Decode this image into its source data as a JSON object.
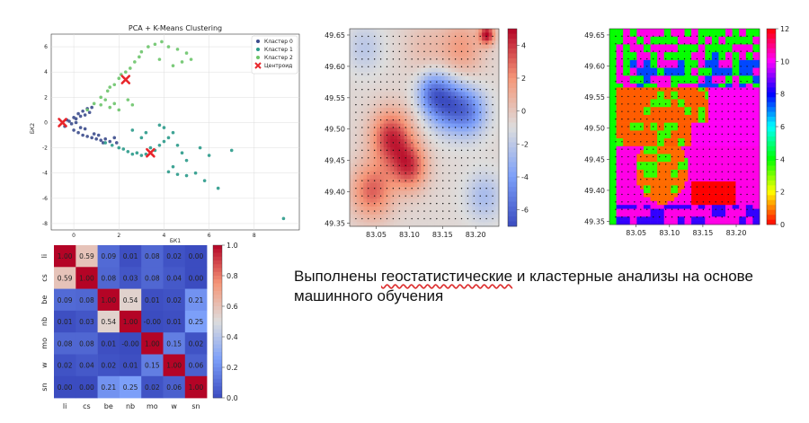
{
  "caption": {
    "part1": "Выполнены ",
    "underlined": "геостатистические",
    "part2": " и кластерные анализы на основе машинного обучения"
  },
  "chart_data": [
    {
      "type": "scatter",
      "title": "PCA + K-Means Clustering",
      "xlabel": "БК1",
      "ylabel": "БК2",
      "xlim": [
        -1,
        10
      ],
      "ylim": [
        -8.5,
        7
      ],
      "xticks": [
        "0",
        "2",
        "4",
        "6",
        "8"
      ],
      "xtick_values": [
        0,
        2,
        4,
        6,
        8
      ],
      "yticks": [
        "6",
        "4",
        "2",
        "0",
        "-2",
        "-4",
        "-6",
        "-8"
      ],
      "ytick_values": [
        6,
        4,
        2,
        0,
        -2,
        -4,
        -6,
        -8
      ],
      "grid": true,
      "legend_position": "top-right",
      "series": [
        {
          "name": "Кластер 0",
          "color": "#3b4b8c",
          "points": [
            [
              -0.4,
              -0.3
            ],
            [
              -0.2,
              0.1
            ],
            [
              0,
              0.4
            ],
            [
              0.2,
              0.7
            ],
            [
              0.4,
              0.9
            ],
            [
              0.6,
              1.1
            ],
            [
              0.8,
              1.2
            ],
            [
              0.1,
              0.3
            ],
            [
              0.3,
              0.5
            ],
            [
              0.5,
              0.6
            ],
            [
              0.7,
              0.8
            ],
            [
              -0.1,
              -0.1
            ],
            [
              0.0,
              -0.6
            ],
            [
              0.2,
              -0.8
            ],
            [
              0.4,
              -1.0
            ],
            [
              0.6,
              -1.1
            ],
            [
              0.8,
              -1.2
            ],
            [
              1.0,
              -1.3
            ],
            [
              1.2,
              -1.4
            ],
            [
              1.4,
              -1.3
            ],
            [
              1.6,
              -1.5
            ],
            [
              1.8,
              -1.2
            ],
            [
              1.9,
              -1.6
            ],
            [
              0.9,
              -0.9
            ],
            [
              1.1,
              -1.0
            ],
            [
              0.3,
              -0.4
            ],
            [
              0.5,
              -0.5
            ],
            [
              0.1,
              0.0
            ],
            [
              -0.3,
              0.2
            ],
            [
              1.3,
              -1.6
            ]
          ]
        },
        {
          "name": "Кластер 1",
          "color": "#2a9a8a",
          "points": [
            [
              1.4,
              -1.6
            ],
            [
              1.7,
              -1.8
            ],
            [
              2.0,
              -2.0
            ],
            [
              2.2,
              -2.1
            ],
            [
              2.4,
              -2.3
            ],
            [
              2.6,
              -2.5
            ],
            [
              2.8,
              -2.4
            ],
            [
              3.0,
              -2.6
            ],
            [
              3.2,
              -2.5
            ],
            [
              3.4,
              -2.0
            ],
            [
              3.6,
              -2.2
            ],
            [
              3.8,
              -1.8
            ],
            [
              4.0,
              -1.5
            ],
            [
              4.2,
              -1.2
            ],
            [
              4.4,
              -0.8
            ],
            [
              4.0,
              -0.4
            ],
            [
              3.8,
              -0.2
            ],
            [
              4.6,
              -1.8
            ],
            [
              4.8,
              -2.4
            ],
            [
              5.0,
              -3.0
            ],
            [
              4.4,
              -3.5
            ],
            [
              4.2,
              -3.9
            ],
            [
              4.6,
              -4.1
            ],
            [
              5.0,
              -4.2
            ],
            [
              5.4,
              -4.0
            ],
            [
              5.8,
              -4.6
            ],
            [
              6.4,
              -5.2
            ],
            [
              7.0,
              -2.2
            ],
            [
              6.0,
              -2.6
            ],
            [
              5.6,
              -2.0
            ],
            [
              9.3,
              -7.6
            ],
            [
              3.2,
              -0.8
            ],
            [
              3.0,
              -1.2
            ],
            [
              2.6,
              -0.6
            ]
          ]
        },
        {
          "name": "Кластер 2",
          "color": "#6cc46a",
          "points": [
            [
              0.6,
              1.0
            ],
            [
              0.9,
              1.5
            ],
            [
              1.2,
              2.0
            ],
            [
              1.5,
              2.5
            ],
            [
              1.6,
              2.8
            ],
            [
              1.8,
              3.0
            ],
            [
              2.0,
              3.5
            ],
            [
              2.1,
              3.8
            ],
            [
              2.3,
              4.0
            ],
            [
              2.5,
              4.3
            ],
            [
              2.7,
              4.8
            ],
            [
              2.9,
              5.2
            ],
            [
              3.0,
              5.6
            ],
            [
              3.3,
              6.0
            ],
            [
              3.6,
              6.2
            ],
            [
              3.9,
              6.4
            ],
            [
              4.2,
              6.0
            ],
            [
              4.6,
              5.8
            ],
            [
              5.0,
              5.5
            ],
            [
              5.2,
              5.0
            ],
            [
              4.8,
              4.8
            ],
            [
              4.4,
              4.5
            ],
            [
              3.8,
              5.0
            ],
            [
              1.6,
              1.2
            ],
            [
              1.8,
              1.5
            ],
            [
              2.0,
              1.0
            ],
            [
              1.4,
              1.8
            ],
            [
              2.4,
              1.8
            ],
            [
              2.6,
              1.4
            ],
            [
              1.2,
              1.4
            ]
          ]
        }
      ],
      "centroids": {
        "name": "Центроид",
        "color": "#e8262b",
        "points": [
          [
            -0.5,
            0.0
          ],
          [
            2.3,
            3.4
          ],
          [
            3.4,
            -2.4
          ]
        ]
      }
    },
    {
      "type": "heatmap",
      "subtype": "interpolated-map-coolwarm",
      "xticks": [
        "83.05",
        "83.10",
        "83.15",
        "83.20"
      ],
      "xtick_values": [
        83.05,
        83.1,
        83.15,
        83.2
      ],
      "yticks": [
        "49.65",
        "49.60",
        "49.55",
        "49.50",
        "49.45",
        "49.40",
        "49.35"
      ],
      "ytick_values": [
        49.65,
        49.6,
        49.55,
        49.5,
        49.45,
        49.4,
        49.35
      ],
      "xlim": [
        83.01,
        83.235
      ],
      "ylim": [
        49.345,
        49.66
      ],
      "colorbar": {
        "ticks": [
          "4",
          "2",
          "0",
          "-2",
          "-4",
          "-6"
        ],
        "tick_values": [
          4,
          2,
          0,
          -2,
          -4,
          -6
        ],
        "range": [
          -7,
          5
        ],
        "colormap": "coolwarm"
      }
    },
    {
      "type": "heatmap",
      "subtype": "classified-map-hsv",
      "xticks": [
        "83.05",
        "83.10",
        "83.15",
        "83.20"
      ],
      "xtick_values": [
        83.05,
        83.1,
        83.15,
        83.2
      ],
      "yticks": [
        "49.65",
        "49.60",
        "49.55",
        "49.50",
        "49.45",
        "49.40",
        "49.35"
      ],
      "ytick_values": [
        49.65,
        49.6,
        49.55,
        49.5,
        49.45,
        49.4,
        49.35
      ],
      "xlim": [
        83.01,
        83.235
      ],
      "ylim": [
        49.345,
        49.66
      ],
      "colorbar": {
        "ticks": [
          "12",
          "10",
          "8",
          "6",
          "4",
          "2",
          "0"
        ],
        "tick_values": [
          12,
          10,
          8,
          6,
          4,
          2,
          0
        ],
        "range": [
          0,
          12
        ],
        "colormap": "hsv"
      }
    },
    {
      "type": "heatmap",
      "subtype": "correlation-matrix",
      "labels": [
        "li",
        "cs",
        "be",
        "nb",
        "mo",
        "w",
        "sn"
      ],
      "values": [
        [
          "1.00",
          "0.59",
          "0.09",
          "0.01",
          "0.08",
          "0.02",
          "0.00"
        ],
        [
          "0.59",
          "1.00",
          "0.08",
          "0.03",
          "0.08",
          "0.04",
          "0.00"
        ],
        [
          "0.09",
          "0.08",
          "1.00",
          "0.54",
          "0.01",
          "0.02",
          "0.21"
        ],
        [
          "0.01",
          "0.03",
          "0.54",
          "1.00",
          "-0.00",
          "0.01",
          "0.25"
        ],
        [
          "0.08",
          "0.08",
          "0.01",
          "-0.00",
          "1.00",
          "0.15",
          "0.02"
        ],
        [
          "0.02",
          "0.04",
          "0.02",
          "0.01",
          "0.15",
          "1.00",
          "0.06"
        ],
        [
          "0.00",
          "0.00",
          "0.21",
          "0.25",
          "0.02",
          "0.06",
          "1.00"
        ]
      ],
      "colorbar": {
        "ticks": [
          "1.0",
          "0.8",
          "0.6",
          "0.4",
          "0.2",
          "0.0"
        ],
        "tick_values": [
          1.0,
          0.8,
          0.6,
          0.4,
          0.2,
          0.0
        ],
        "range": [
          0,
          1
        ],
        "colormap": "coolwarm"
      }
    }
  ]
}
